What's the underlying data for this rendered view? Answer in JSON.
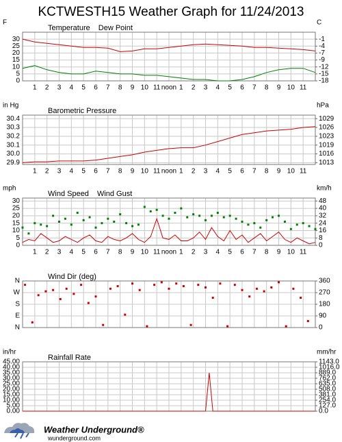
{
  "title": "KCTWESTH15 Weather Graph for 11/24/2013",
  "chart_data": [
    {
      "type": "line",
      "ylabel": "F",
      "y2label": "C",
      "xlim": [
        0,
        24
      ],
      "x_labels": true,
      "xticks": [
        1,
        2,
        3,
        4,
        5,
        6,
        7,
        8,
        9,
        10,
        11,
        {
          "value": 12,
          "label": "noon"
        },
        {
          "value": 13,
          "label": "1"
        },
        {
          "value": 14,
          "label": "2"
        },
        {
          "value": 15,
          "label": "3"
        },
        {
          "value": 16,
          "label": "4"
        },
        {
          "value": 17,
          "label": "5"
        },
        {
          "value": 18,
          "label": "6"
        },
        {
          "value": 19,
          "label": "7"
        },
        {
          "value": 20,
          "label": "8"
        },
        {
          "value": 21,
          "label": "9"
        },
        {
          "value": 22,
          "label": "10"
        },
        {
          "value": 23,
          "label": "11"
        }
      ],
      "ylim": [
        0,
        35
      ],
      "yticks": [
        0,
        5,
        10,
        15,
        20,
        25,
        30
      ],
      "y2lim": [
        -17.78,
        1.67
      ],
      "y2ticks": [
        {
          "value": -17.78,
          "label": "-18"
        },
        {
          "value": -15,
          "label": "-15"
        },
        {
          "value": -12.22,
          "label": "-12"
        },
        {
          "value": -9.44,
          "label": "-9"
        },
        {
          "value": -6.67,
          "label": "-7"
        },
        {
          "value": -3.89,
          "label": "-4"
        },
        {
          "value": -1.11,
          "label": "-1"
        }
      ],
      "x": [
        0,
        1,
        2,
        3,
        4,
        5,
        6,
        7,
        8,
        9,
        10,
        11,
        12,
        13,
        14,
        15,
        16,
        17,
        18,
        19,
        20,
        21,
        22,
        23,
        24
      ],
      "series": [
        {
          "name": "Temperature",
          "color": "#cc0000",
          "kind": "line",
          "values": [
            30,
            28,
            27,
            26,
            25,
            24,
            24,
            23.5,
            21,
            21.5,
            23,
            23,
            24,
            25,
            26,
            26.5,
            26,
            25.5,
            25,
            24,
            24,
            23.5,
            23,
            22.5,
            21.5
          ]
        },
        {
          "name": "Dew Point",
          "color": "#008000",
          "kind": "line",
          "values": [
            9,
            11,
            8,
            6,
            5,
            5,
            7,
            6,
            5,
            5,
            4,
            4,
            3,
            2,
            1,
            1,
            0,
            0,
            1,
            3,
            6,
            8,
            9,
            9,
            6
          ]
        }
      ]
    },
    {
      "type": "line",
      "ylabel": "in Hg",
      "y2label": "hPa",
      "xlim": [
        0,
        24
      ],
      "x_labels": true,
      "xticks": [
        1,
        2,
        3,
        4,
        5,
        6,
        7,
        8,
        9,
        10,
        11,
        {
          "value": 12,
          "label": "noon"
        },
        {
          "value": 13,
          "label": "1"
        },
        {
          "value": 14,
          "label": "2"
        },
        {
          "value": 15,
          "label": "3"
        },
        {
          "value": 16,
          "label": "4"
        },
        {
          "value": 17,
          "label": "5"
        },
        {
          "value": 18,
          "label": "6"
        },
        {
          "value": 19,
          "label": "7"
        },
        {
          "value": 20,
          "label": "8"
        },
        {
          "value": 21,
          "label": "9"
        },
        {
          "value": 22,
          "label": "10"
        },
        {
          "value": 23,
          "label": "11"
        }
      ],
      "ylim": [
        29.88,
        30.44
      ],
      "yticks": [
        {
          "value": 29.9,
          "label": "29.9"
        },
        {
          "value": 30.0,
          "label": "30.0"
        },
        30.1,
        30.2,
        30.3,
        30.4
      ],
      "y2lim": [
        1011.85,
        1030.82
      ],
      "y2ticks": [
        {
          "value": 1012.53,
          "label": "1013"
        },
        {
          "value": 1015.92,
          "label": "1016"
        },
        {
          "value": 1019.3,
          "label": "1019"
        },
        {
          "value": 1022.69,
          "label": "1023"
        },
        {
          "value": 1026.08,
          "label": "1026"
        },
        {
          "value": 1029.46,
          "label": "1029"
        }
      ],
      "x": [
        0,
        1,
        2,
        3,
        4,
        5,
        6,
        7,
        8,
        9,
        10,
        11,
        12,
        13,
        14,
        15,
        16,
        17,
        18,
        19,
        20,
        21,
        22,
        23,
        24
      ],
      "series": [
        {
          "name": "Barometric Pressure",
          "color": "#cc0000",
          "kind": "line",
          "values": [
            29.9,
            29.91,
            29.91,
            29.92,
            29.92,
            29.92,
            29.93,
            29.95,
            29.97,
            29.99,
            30.02,
            30.04,
            30.06,
            30.07,
            30.07,
            30.1,
            30.14,
            30.18,
            30.22,
            30.24,
            30.26,
            30.27,
            30.28,
            30.3,
            30.31
          ]
        }
      ]
    },
    {
      "type": "line",
      "ylabel": "mph",
      "y2label": "km/h",
      "xlim": [
        0,
        24
      ],
      "x_labels": true,
      "xticks": [
        1,
        2,
        3,
        4,
        5,
        6,
        7,
        8,
        9,
        10,
        11,
        {
          "value": 12,
          "label": "noon"
        },
        {
          "value": 13,
          "label": "1"
        },
        {
          "value": 14,
          "label": "2"
        },
        {
          "value": 15,
          "label": "3"
        },
        {
          "value": 16,
          "label": "4"
        },
        {
          "value": 17,
          "label": "5"
        },
        {
          "value": 18,
          "label": "6"
        },
        {
          "value": 19,
          "label": "7"
        },
        {
          "value": 20,
          "label": "8"
        },
        {
          "value": 21,
          "label": "9"
        },
        {
          "value": 22,
          "label": "10"
        },
        {
          "value": 23,
          "label": "11"
        }
      ],
      "ylim": [
        0,
        32
      ],
      "yticks": [
        0,
        5,
        10,
        15,
        20,
        25,
        30
      ],
      "y2lim": [
        0,
        51.5
      ],
      "y2ticks": [
        0,
        {
          "value": 8.05,
          "label": "8"
        },
        {
          "value": 16.09,
          "label": "16"
        },
        {
          "value": 24.14,
          "label": "24"
        },
        {
          "value": 32.19,
          "label": "32"
        },
        {
          "value": 40.23,
          "label": "40"
        },
        {
          "value": 48.28,
          "label": "48"
        }
      ],
      "x": [
        0,
        0.5,
        1,
        1.5,
        2,
        2.5,
        3,
        3.5,
        4,
        4.5,
        5,
        5.5,
        6,
        6.5,
        7,
        7.5,
        8,
        8.5,
        9,
        9.5,
        10,
        10.5,
        11,
        11.5,
        12,
        12.5,
        13,
        13.5,
        14,
        14.5,
        15,
        15.5,
        16,
        16.5,
        17,
        17.5,
        18,
        18.5,
        19,
        19.5,
        20,
        20.5,
        21,
        21.5,
        22,
        22.5,
        23,
        23.5,
        24
      ],
      "series": [
        {
          "name": "Wind Speed",
          "color": "#cc0000",
          "kind": "line",
          "values": [
            2,
            4,
            3,
            8,
            5,
            2,
            3,
            6,
            4,
            2,
            5,
            7,
            3,
            2,
            6,
            4,
            3,
            5,
            8,
            4,
            2,
            6,
            18,
            5,
            4,
            7,
            3,
            3,
            5,
            9,
            4,
            12,
            6,
            3,
            10,
            4,
            7,
            2,
            5,
            8,
            3,
            6,
            9,
            4,
            2,
            5,
            3,
            1,
            2
          ]
        },
        {
          "name": "Wind Gust",
          "color": "#008000",
          "kind": "points",
          "values": [
            12,
            8,
            15,
            14,
            13,
            20,
            16,
            18,
            14,
            22,
            17,
            19,
            12,
            15,
            18,
            16,
            21,
            15,
            13,
            14,
            26,
            23,
            24,
            20,
            18,
            22,
            25,
            19,
            21,
            20,
            17,
            20,
            22,
            19,
            20,
            18,
            16,
            14,
            15,
            12,
            17,
            19,
            20,
            16,
            11,
            14,
            15,
            13,
            11
          ]
        }
      ]
    },
    {
      "type": "scatter",
      "xlim": [
        0,
        24
      ],
      "x_labels": false,
      "xticks": [
        1,
        2,
        3,
        4,
        5,
        6,
        7,
        8,
        9,
        10,
        11,
        12,
        13,
        14,
        15,
        16,
        17,
        18,
        19,
        20,
        21,
        22,
        23
      ],
      "ylim": [
        0,
        360
      ],
      "yticks": [
        {
          "value": 0,
          "label": "N"
        },
        {
          "value": 90,
          "label": "E"
        },
        {
          "value": 180,
          "label": "S"
        },
        {
          "value": 270,
          "label": "W"
        },
        {
          "value": 360,
          "label": "N"
        }
      ],
      "y2lim": [
        0,
        360
      ],
      "y2ticks": [
        0,
        90,
        180,
        270,
        360
      ],
      "x": [
        0.2,
        0.8,
        1.3,
        1.9,
        2.5,
        3.1,
        3.6,
        4.2,
        4.8,
        5.4,
        6,
        6.6,
        7.2,
        7.8,
        8.4,
        9,
        9.6,
        10.2,
        10.8,
        11.4,
        12,
        12.6,
        13.2,
        13.8,
        14.4,
        15,
        15.6,
        16.2,
        16.8,
        17.4,
        18,
        18.6,
        19.2,
        19.8,
        20.4,
        21,
        21.6,
        22.2,
        22.8,
        23.4
      ],
      "series": [
        {
          "name": "Wind Dir (deg)",
          "color": "#cc0000",
          "kind": "points",
          "values": [
            330,
            40,
            250,
            280,
            290,
            220,
            300,
            260,
            330,
            190,
            240,
            20,
            300,
            320,
            100,
            340,
            290,
            10,
            330,
            350,
            300,
            340,
            320,
            20,
            330,
            310,
            230,
            340,
            10,
            330,
            290,
            240,
            300,
            280,
            310,
            350,
            10,
            300,
            230,
            50
          ]
        }
      ]
    },
    {
      "type": "line",
      "ylabel": "in/hr",
      "y2label": "mm/hr",
      "xlim": [
        0,
        24
      ],
      "x_labels": false,
      "xticks": [
        1,
        2,
        3,
        4,
        5,
        6,
        7,
        8,
        9,
        10,
        11,
        12,
        13,
        14,
        15,
        16,
        17,
        18,
        19,
        20,
        21,
        22,
        23
      ],
      "ylim": [
        0,
        45
      ],
      "yticks": [
        {
          "value": 0,
          "label": "0.00"
        },
        {
          "value": 5,
          "label": "5.00"
        },
        {
          "value": 10,
          "label": "10.00"
        },
        {
          "value": 15,
          "label": "15.00"
        },
        {
          "value": 20,
          "label": "20.00"
        },
        {
          "value": 25,
          "label": "25.00"
        },
        {
          "value": 30,
          "label": "30.00"
        },
        {
          "value": 35,
          "label": "35.00"
        },
        {
          "value": 40,
          "label": "40.00"
        },
        {
          "value": 45,
          "label": "45.00"
        }
      ],
      "y2lim": [
        0,
        1143
      ],
      "y2ticks": [
        {
          "value": 0,
          "label": "0.0"
        },
        {
          "value": 127,
          "label": "127.0"
        },
        {
          "value": 254,
          "label": "254.0"
        },
        {
          "value": 381,
          "label": "381.0"
        },
        {
          "value": 508,
          "label": "508.0"
        },
        {
          "value": 635,
          "label": "635.0"
        },
        {
          "value": 762,
          "label": "762.0"
        },
        {
          "value": 889,
          "label": "889.0"
        },
        {
          "value": 1016,
          "label": "1016.0"
        },
        {
          "value": 1143,
          "label": "1143.0"
        }
      ],
      "x": [
        0,
        15,
        15.3,
        15.6,
        24
      ],
      "series": [
        {
          "name": "Rainfall Rate",
          "color": "#cc0000",
          "kind": "line",
          "values": [
            0,
            0,
            35,
            0,
            0
          ]
        }
      ]
    }
  ],
  "footer": {
    "brand": "Weather Underground®",
    "url": "wunderground.com"
  }
}
